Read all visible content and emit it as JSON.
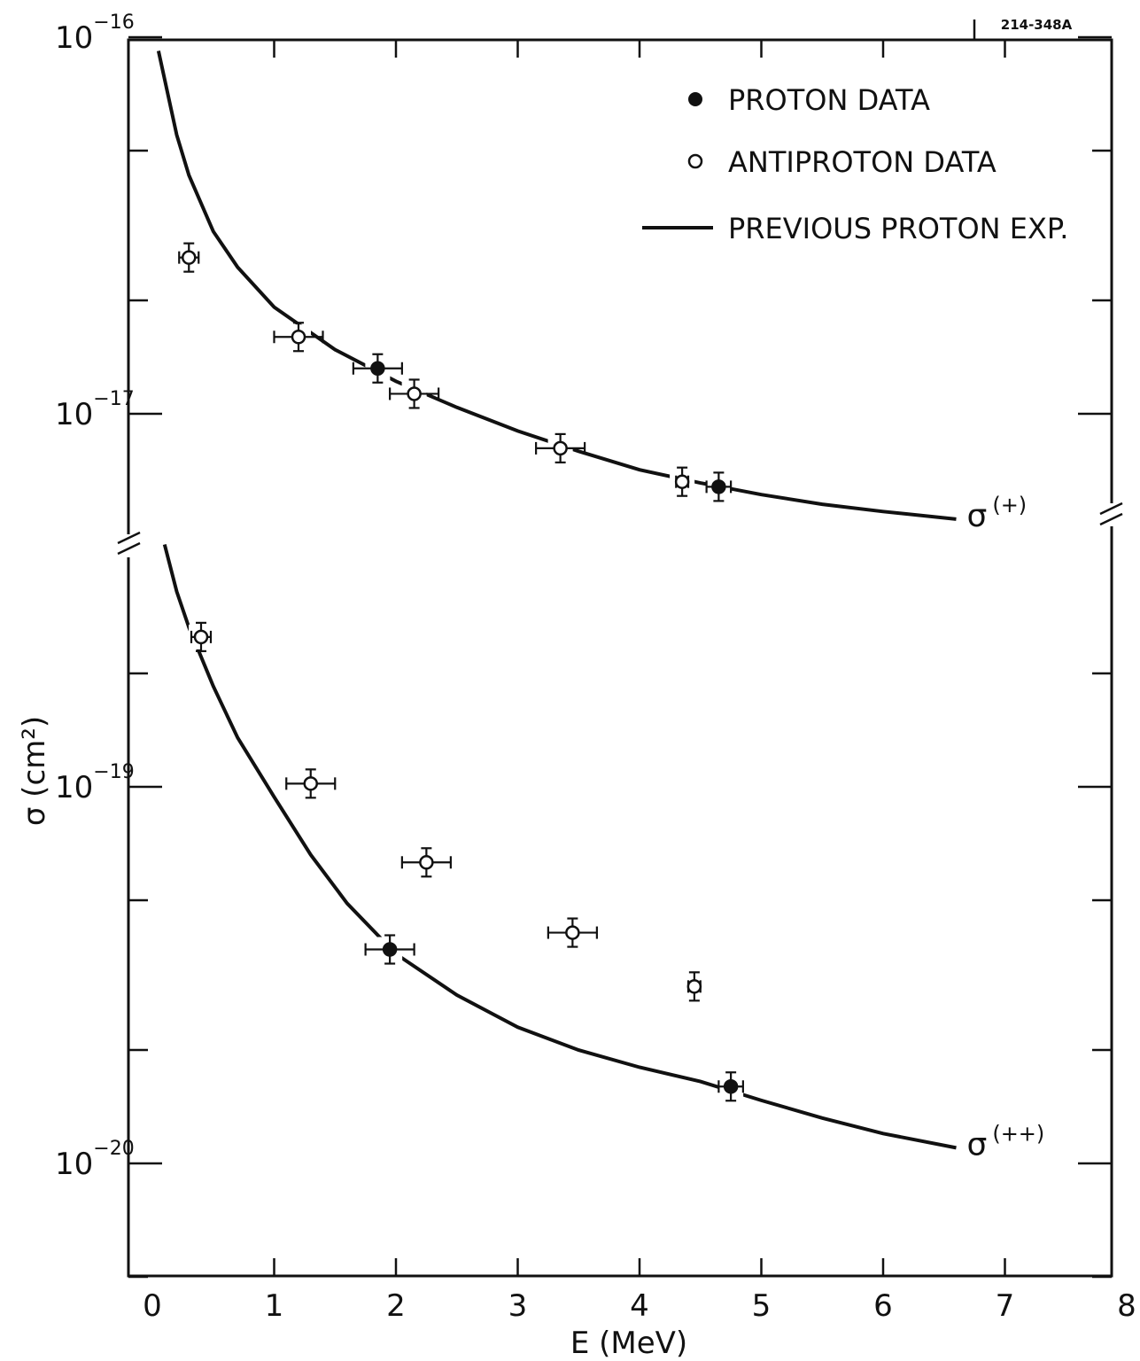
{
  "chart_data": {
    "type": "scatter",
    "figure_id": "214-348A",
    "xlabel": "E (MeV)",
    "ylabel": "σ (cm²)",
    "xlim": [
      0,
      8
    ],
    "x_ticks": [
      "0",
      "1",
      "2",
      "3",
      "4",
      "5",
      "6",
      "7",
      "8"
    ],
    "y_scale": "log",
    "y_axis_break": true,
    "upper_panel": {
      "ylim": [
        5.3e-18,
        1e-16
      ],
      "y_ticks": [
        {
          "value": 1e-16,
          "label": "10",
          "exp": "−16"
        },
        {
          "value": 1e-17,
          "label": "10",
          "exp": "−17"
        }
      ]
    },
    "lower_panel": {
      "ylim": [
        5e-21,
        4.5e-19
      ],
      "y_ticks": [
        {
          "value": 1e-19,
          "label": "10",
          "exp": "−19"
        },
        {
          "value": 1e-20,
          "label": "10",
          "exp": "−20"
        }
      ]
    },
    "legend": {
      "position": "top-right",
      "entries": [
        {
          "label": "PROTON DATA",
          "marker": "filled-circle"
        },
        {
          "label": "ANTIPROTON DATA",
          "marker": "open-circle"
        },
        {
          "label": "PREVIOUS PROTON EXP.",
          "marker": "line"
        }
      ]
    },
    "series": [
      {
        "curve_label": "σ",
        "curve_label_sup": "(+)",
        "panel": "upper",
        "proton_data": [
          {
            "x": 1.85,
            "y": 1.32e-17,
            "xerr": 0.2
          },
          {
            "x": 4.65,
            "y": 6.4e-18,
            "xerr": 0.1
          }
        ],
        "antiproton_data": [
          {
            "x": 0.3,
            "y": 2.6e-17,
            "xerr": 0.08
          },
          {
            "x": 1.2,
            "y": 1.6e-17,
            "xerr": 0.2
          },
          {
            "x": 2.15,
            "y": 1.13e-17,
            "xerr": 0.2
          },
          {
            "x": 3.35,
            "y": 8.1e-18,
            "xerr": 0.2
          },
          {
            "x": 4.35,
            "y": 6.6e-18,
            "xerr": 0.05
          }
        ],
        "previous_proton_exp": [
          {
            "x": 0.05,
            "y": 9.2e-17
          },
          {
            "x": 0.2,
            "y": 5.5e-17
          },
          {
            "x": 0.3,
            "y": 4.3e-17
          },
          {
            "x": 0.5,
            "y": 3.05e-17
          },
          {
            "x": 0.7,
            "y": 2.45e-17
          },
          {
            "x": 1.0,
            "y": 1.92e-17
          },
          {
            "x": 1.5,
            "y": 1.48e-17
          },
          {
            "x": 2.0,
            "y": 1.22e-17
          },
          {
            "x": 2.5,
            "y": 1.04e-17
          },
          {
            "x": 3.0,
            "y": 9e-18
          },
          {
            "x": 3.5,
            "y": 7.95e-18
          },
          {
            "x": 4.0,
            "y": 7.1e-18
          },
          {
            "x": 4.5,
            "y": 6.55e-18
          },
          {
            "x": 5.0,
            "y": 6.1e-18
          },
          {
            "x": 5.5,
            "y": 5.75e-18
          },
          {
            "x": 6.0,
            "y": 5.5e-18
          },
          {
            "x": 6.6,
            "y": 5.25e-18
          }
        ]
      },
      {
        "curve_label": "σ",
        "curve_label_sup": "(++)",
        "panel": "lower",
        "proton_data": [
          {
            "x": 1.95,
            "y": 3.7e-20,
            "xerr": 0.2
          },
          {
            "x": 4.75,
            "y": 1.6e-20,
            "xerr": 0.1
          }
        ],
        "antiproton_data": [
          {
            "x": 0.4,
            "y": 2.5e-19,
            "xerr": 0.08
          },
          {
            "x": 1.3,
            "y": 1.02e-19,
            "xerr": 0.2
          },
          {
            "x": 2.25,
            "y": 6.3e-20,
            "xerr": 0.2
          },
          {
            "x": 3.45,
            "y": 4.1e-20,
            "xerr": 0.2
          },
          {
            "x": 4.45,
            "y": 2.95e-20,
            "xerr": 0.05
          }
        ],
        "previous_proton_exp": [
          {
            "x": 0.1,
            "y": 4.4e-19
          },
          {
            "x": 0.2,
            "y": 3.3e-19
          },
          {
            "x": 0.3,
            "y": 2.65e-19
          },
          {
            "x": 0.5,
            "y": 1.85e-19
          },
          {
            "x": 0.7,
            "y": 1.35e-19
          },
          {
            "x": 1.0,
            "y": 9.4e-20
          },
          {
            "x": 1.3,
            "y": 6.6e-20
          },
          {
            "x": 1.6,
            "y": 4.9e-20
          },
          {
            "x": 2.0,
            "y": 3.6e-20
          },
          {
            "x": 2.5,
            "y": 2.8e-20
          },
          {
            "x": 3.0,
            "y": 2.3e-20
          },
          {
            "x": 3.5,
            "y": 2e-20
          },
          {
            "x": 4.0,
            "y": 1.8e-20
          },
          {
            "x": 4.5,
            "y": 1.65e-20
          },
          {
            "x": 5.0,
            "y": 1.47e-20
          },
          {
            "x": 5.5,
            "y": 1.32e-20
          },
          {
            "x": 6.0,
            "y": 1.2e-20
          },
          {
            "x": 6.6,
            "y": 1.1e-20
          }
        ]
      }
    ]
  }
}
